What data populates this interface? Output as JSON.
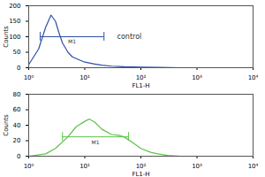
{
  "chart_data": [
    {
      "type": "line",
      "log": "x",
      "grid": false,
      "legend": false,
      "x_label": "FL1-H",
      "y_label": "Counts",
      "x": [
        1,
        1.5,
        2,
        2.5,
        3,
        3.5,
        4,
        5,
        6,
        8,
        10,
        15,
        20,
        30,
        50,
        100,
        200,
        500,
        1000,
        10000
      ],
      "series": [
        {
          "color": "#2e4fa3",
          "values": [
            10,
            60,
            130,
            170,
            150,
            110,
            80,
            50,
            35,
            25,
            18,
            12,
            8,
            5,
            3,
            2,
            1,
            0,
            0,
            0
          ]
        }
      ],
      "xlim": [
        1,
        10000
      ],
      "xticks": [
        {
          "value": 1,
          "label": "10⁰"
        },
        {
          "value": 10,
          "label": "10¹"
        },
        {
          "value": 100,
          "label": "10²"
        },
        {
          "value": 1000,
          "label": "10³"
        },
        {
          "value": 10000,
          "label": "10⁴"
        }
      ],
      "ylim": [
        0,
        200
      ],
      "yticks": [
        0,
        50,
        100,
        150,
        200
      ],
      "gate": {
        "label": "M1",
        "x1": 1.6,
        "x2": 22,
        "y": 100
      },
      "annotations": [
        {
          "text": "control",
          "x": 35,
          "y": 100
        }
      ]
    },
    {
      "type": "line",
      "log": "x",
      "grid": false,
      "legend": false,
      "x_label": "FL1-H",
      "y_label": "Counts",
      "x": [
        1,
        2,
        3,
        5,
        7,
        10,
        12,
        15,
        20,
        30,
        40,
        50,
        70,
        100,
        150,
        200,
        300,
        500,
        1000,
        10000
      ],
      "series": [
        {
          "color": "#5cc24a",
          "values": [
            0,
            3,
            10,
            25,
            38,
            45,
            48,
            44,
            35,
            28,
            27,
            25,
            18,
            10,
            5,
            3,
            1,
            0,
            0,
            0
          ]
        }
      ],
      "xlim": [
        1,
        10000
      ],
      "xticks": [
        {
          "value": 1,
          "label": "10⁰"
        },
        {
          "value": 10,
          "label": "10¹"
        },
        {
          "value": 100,
          "label": "10²"
        },
        {
          "value": 1000,
          "label": "10³"
        },
        {
          "value": 10000,
          "label": "10⁴"
        }
      ],
      "ylim": [
        0,
        80
      ],
      "yticks": [
        0,
        20,
        40,
        60,
        80
      ],
      "gate": {
        "label": "M1",
        "x1": 4,
        "x2": 60,
        "y": 25
      },
      "annotations": []
    }
  ]
}
